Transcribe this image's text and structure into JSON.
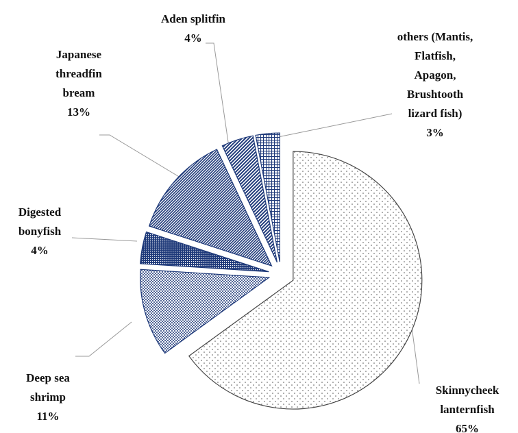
{
  "chart_data": {
    "type": "pie",
    "categories": [
      "Skinnycheek\nlanternfish",
      "Deep sea\nshrimp",
      "Digested\nbonyfish",
      "Japanese\nthreadfin\nbream",
      "Aden splitfin",
      "others (Mantis,\nFlatfish,\nApagon,\nBrushtooth\nlizard fish)"
    ],
    "values": [
      65,
      11,
      4,
      13,
      4,
      3
    ],
    "value_labels": [
      "65%",
      "11%",
      "4%",
      "13%",
      "4%",
      "3%"
    ]
  }
}
